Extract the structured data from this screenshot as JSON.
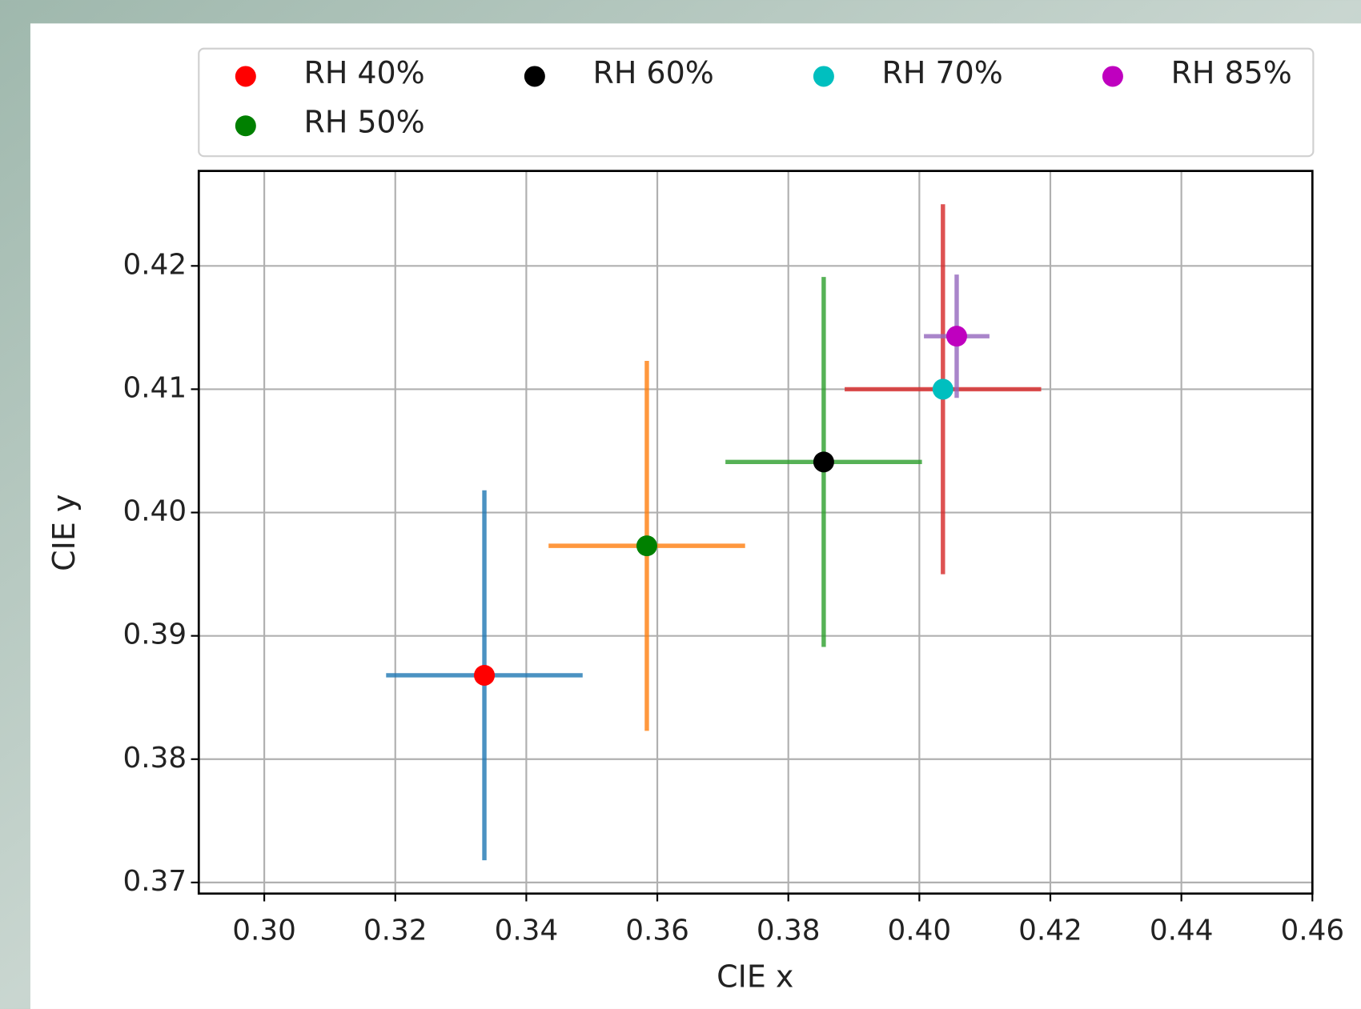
{
  "chart_data": {
    "type": "scatter",
    "x_label": "CIE x",
    "y_label": "CIE y",
    "xlim": [
      0.29,
      0.46
    ],
    "ylim": [
      0.3691,
      0.4277
    ],
    "xticks": [
      {
        "value": 0.3,
        "label": "0.30"
      },
      0.32,
      0.34,
      0.36,
      0.38,
      {
        "value": 0.4,
        "label": "0.40"
      },
      0.42,
      0.44,
      0.46
    ],
    "yticks": [
      0.37,
      0.38,
      0.39,
      {
        "value": 0.4,
        "label": "0.40"
      },
      0.41,
      0.42
    ],
    "grid": true,
    "legend": "top",
    "series": [
      {
        "name": "RH 40%",
        "color": "#ff0000",
        "error_color": "#1f77b4",
        "x": [
          0.3336
        ],
        "values": [
          0.3868
        ],
        "xerr": [
          0.015
        ],
        "yerr": [
          0.015
        ]
      },
      {
        "name": "RH 50%",
        "color": "#008000",
        "error_color": "#ff7f0e",
        "x": [
          0.3584
        ],
        "values": [
          0.3973
        ],
        "xerr": [
          0.015
        ],
        "yerr": [
          0.015
        ]
      },
      {
        "name": "RH 60%",
        "color": "#000000",
        "error_color": "#2ca02c",
        "x": [
          0.3854
        ],
        "values": [
          0.4041
        ],
        "xerr": [
          0.015
        ],
        "yerr": [
          0.015
        ]
      },
      {
        "name": "RH 70%",
        "color": "#00bfbf",
        "error_color": "#d62728",
        "x": [
          0.4036
        ],
        "values": [
          0.41
        ],
        "xerr": [
          0.015
        ],
        "yerr": [
          0.015
        ]
      },
      {
        "name": "RH 85%",
        "color": "#bf00bf",
        "error_color": "#9467bd",
        "x": [
          0.4057
        ],
        "values": [
          0.4143
        ],
        "xerr": [
          0.005
        ],
        "yerr": [
          0.005
        ]
      }
    ]
  }
}
